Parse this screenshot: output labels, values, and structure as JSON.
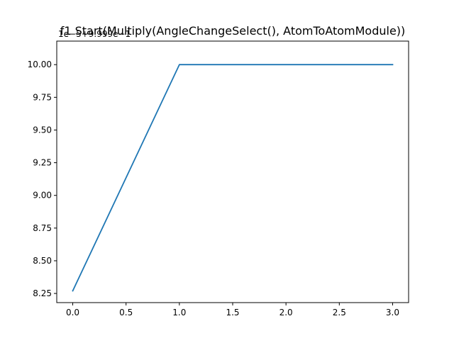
{
  "chart_data": {
    "type": "line",
    "title": "f1 Start(Multiply(AngleChangeSelect(), AtomToAtomModule))",
    "offset_text": "1e−5+9.999e−1",
    "xlabel": "",
    "ylabel": "",
    "xlim": [
      -0.15,
      3.15
    ],
    "ylim": [
      8.18,
      10.18
    ],
    "x_ticks": [
      0.0,
      0.5,
      1.0,
      1.5,
      2.0,
      2.5,
      3.0
    ],
    "x_tick_labels": [
      "0.0",
      "0.5",
      "1.0",
      "1.5",
      "2.0",
      "2.5",
      "3.0"
    ],
    "y_ticks": [
      8.25,
      8.5,
      8.75,
      9.0,
      9.25,
      9.5,
      9.75,
      10.0
    ],
    "y_tick_labels": [
      "8.25",
      "8.50",
      "8.75",
      "9.00",
      "9.25",
      "9.50",
      "9.75",
      "10.00"
    ],
    "grid": false,
    "series": [
      {
        "color": "#1f77b4",
        "x": [
          0,
          1,
          2,
          3
        ],
        "y": [
          8.27,
          10.0,
          10.0,
          10.0
        ]
      }
    ]
  }
}
